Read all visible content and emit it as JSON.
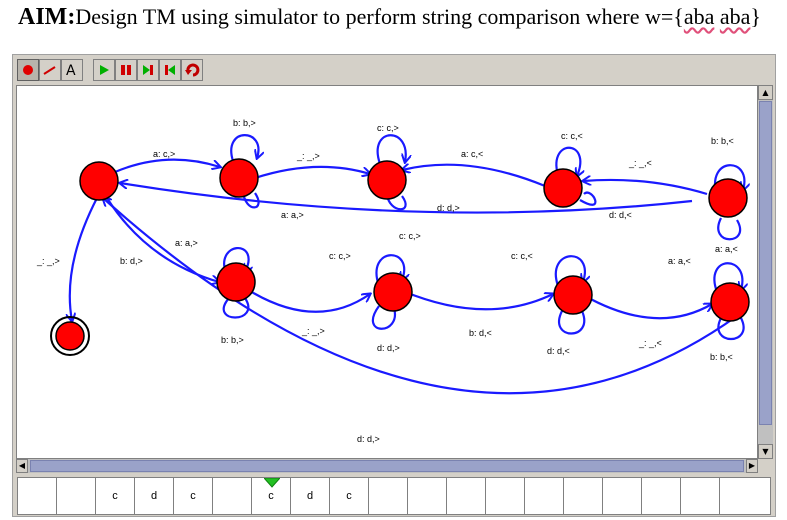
{
  "title": {
    "aim_label": "AIM:",
    "text": "Design TM using simulator to perform string comparison where w={",
    "word1": "aba",
    "space": " ",
    "word2": "aba",
    "close": "}"
  },
  "toolbar": {
    "tools": [
      "state-tool",
      "transition-tool",
      "text-tool",
      "play",
      "pause",
      "step-forward",
      "step-back",
      "reset"
    ]
  },
  "diagram": {
    "transitions": {
      "t01": "a: c,>",
      "t11": "b: b,>",
      "t12": "_: _,>",
      "t22": "c: c,>",
      "t23": "a: c,<",
      "t33a": "c: c,<",
      "t33b": "d: d,>",
      "t34": "_: _,<",
      "t44a": "b: b,<",
      "t44b": "d: d,<",
      "t40": "a: a,>",
      "t0x": "c: c,>",
      "t05": "a: a,>",
      "t0h": "_: _,>",
      "t0bd": "b: d,>",
      "t55": "b: b,>",
      "t56": "_: _,>",
      "t66a": "c: c,>",
      "t66b": "d: d,>",
      "t67": "b: d,<",
      "t77a": "c: c,<",
      "t77b": "d: d,<",
      "t78": "_: _,<",
      "t88a": "a: a,<",
      "t88b": "b: b,<",
      "t88c": "a: a,<",
      "t80": "d: d,>"
    }
  },
  "tape": {
    "cells": [
      "",
      "",
      "c",
      "d",
      "c",
      "",
      "c",
      "d",
      "c",
      "",
      "",
      "",
      "",
      "",
      "",
      "",
      "",
      "",
      ""
    ],
    "head_index": 6
  },
  "colors": {
    "state_fill": "#ff0000",
    "edge": "#1a1aff",
    "scroll_thumb": "#9aa2c9"
  }
}
